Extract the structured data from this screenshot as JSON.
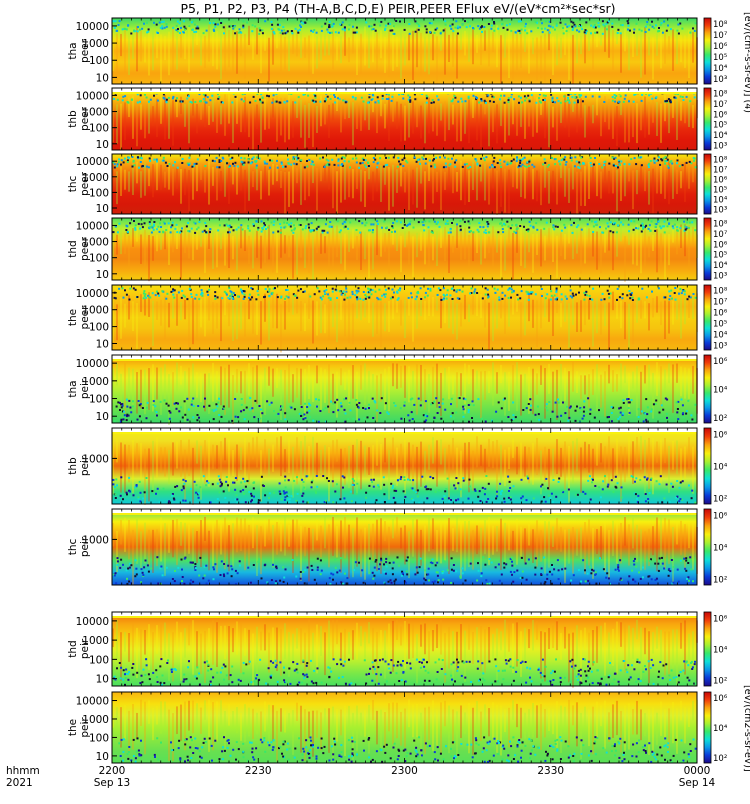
{
  "chart_data": {
    "type": "heatmap",
    "title": "P5, P1, P2, P3, P4 (TH-A,B,C,D,E) PEIR,PEER EFlux eV/(eV*cm²*sec*sr)",
    "colorbar_label_peer": "[eV/(cm²-s-sr-eV)] (4)",
    "colorbar_label_peir": "[eV/(cm2-s-sr-eV)]",
    "colorbar_scale": "log",
    "colormap": [
      "#1c0a8a",
      "#0a3ad8",
      "#0a98e8",
      "#0ee0d8",
      "#38e86a",
      "#a8f030",
      "#f7f00e",
      "#f9a40e",
      "#f03c0a",
      "#d40808"
    ],
    "time_axis": {
      "label_row1": "hhmm",
      "label_row2": "2021",
      "ticks": [
        {
          "top": "2200",
          "bottom": "Sep 13"
        },
        {
          "top": "2230",
          "bottom": ""
        },
        {
          "top": "2300",
          "bottom": ""
        },
        {
          "top": "2330",
          "bottom": ""
        },
        {
          "top": "0000",
          "bottom": "Sep 14"
        }
      ]
    },
    "panels": [
      {
        "probe": "tha",
        "instrument": "peer",
        "yticks": [
          "10000",
          "1000",
          "100",
          "10"
        ],
        "cbticks": [
          "10⁸",
          "10⁷",
          "10⁶",
          "10⁵",
          "10⁴",
          "10³"
        ]
      },
      {
        "probe": "thb",
        "instrument": "peer",
        "yticks": [
          "10000",
          "1000",
          "100",
          "10"
        ],
        "cbticks": [
          "10⁸",
          "10⁷",
          "10⁶",
          "10⁵",
          "10⁴",
          "10³"
        ]
      },
      {
        "probe": "thc",
        "instrument": "peer",
        "yticks": [
          "10000",
          "1000",
          "100",
          "10"
        ],
        "cbticks": [
          "10⁸",
          "10⁷",
          "10⁶",
          "10⁵",
          "10⁴",
          "10³"
        ]
      },
      {
        "probe": "thd",
        "instrument": "peer",
        "yticks": [
          "10000",
          "1000",
          "100",
          "10"
        ],
        "cbticks": [
          "10⁸",
          "10⁷",
          "10⁶",
          "10⁵",
          "10⁴",
          "10³"
        ]
      },
      {
        "probe": "the",
        "instrument": "peer",
        "yticks": [
          "10000",
          "1000",
          "100",
          "10"
        ],
        "cbticks": [
          "10⁸",
          "10⁷",
          "10⁶",
          "10⁵",
          "10⁴",
          "10³"
        ]
      },
      {
        "probe": "tha",
        "instrument": "peir",
        "yticks": [
          "10000",
          "1000",
          "100",
          "10"
        ],
        "cbticks": [
          "10⁶",
          "10⁴",
          "10²"
        ]
      },
      {
        "probe": "thb",
        "instrument": "peir",
        "yticks": [
          "1000"
        ],
        "cbticks": [
          "10⁶",
          "10⁴",
          "10²"
        ]
      },
      {
        "probe": "thc",
        "instrument": "peir",
        "yticks": [
          "1000"
        ],
        "cbticks": [
          "10⁶",
          "10⁴",
          "10²"
        ]
      },
      {
        "probe": "thd",
        "instrument": "peir",
        "yticks": [
          "10000",
          "1000",
          "100",
          "10"
        ],
        "cbticks": [
          "10⁶",
          "10⁴",
          "10²"
        ]
      },
      {
        "probe": "the",
        "instrument": "peir",
        "yticks": [
          "10000",
          "1000",
          "100",
          "10"
        ],
        "cbticks": [
          "10⁶",
          "10⁴",
          "10²"
        ]
      }
    ]
  }
}
